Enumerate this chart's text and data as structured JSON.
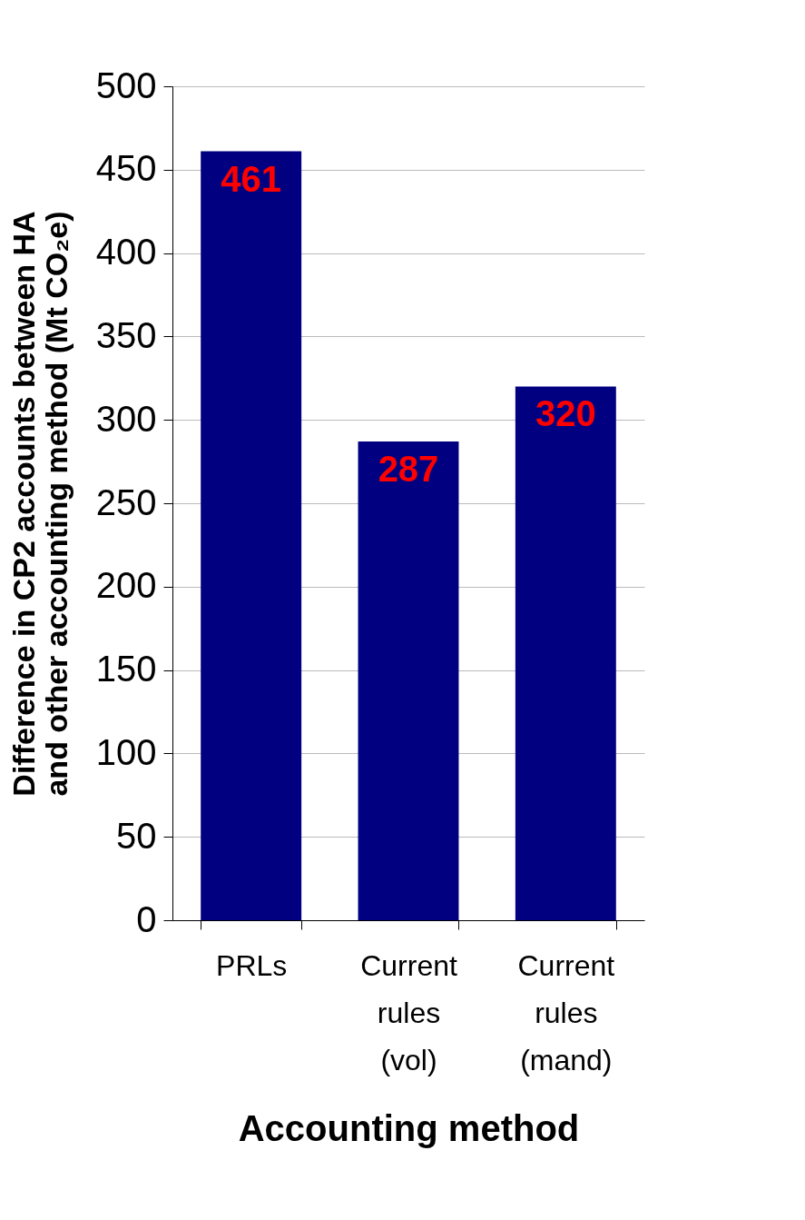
{
  "chart_data": {
    "type": "bar",
    "xlabel": "Accounting method",
    "ylabel": "Difference in CP2 accounts between HA and other accounting method (Mt CO₂e)",
    "categories": [
      "PRLs",
      "Current rules (vol)",
      "Current rules (mand)"
    ],
    "values": [
      461,
      287,
      320
    ],
    "color": "#000080",
    "data_labels": true,
    "ylim": [
      0,
      500
    ],
    "yticks": [
      0,
      50,
      100,
      150,
      200,
      250,
      300,
      350,
      400,
      450,
      500
    ],
    "grid": "y"
  }
}
